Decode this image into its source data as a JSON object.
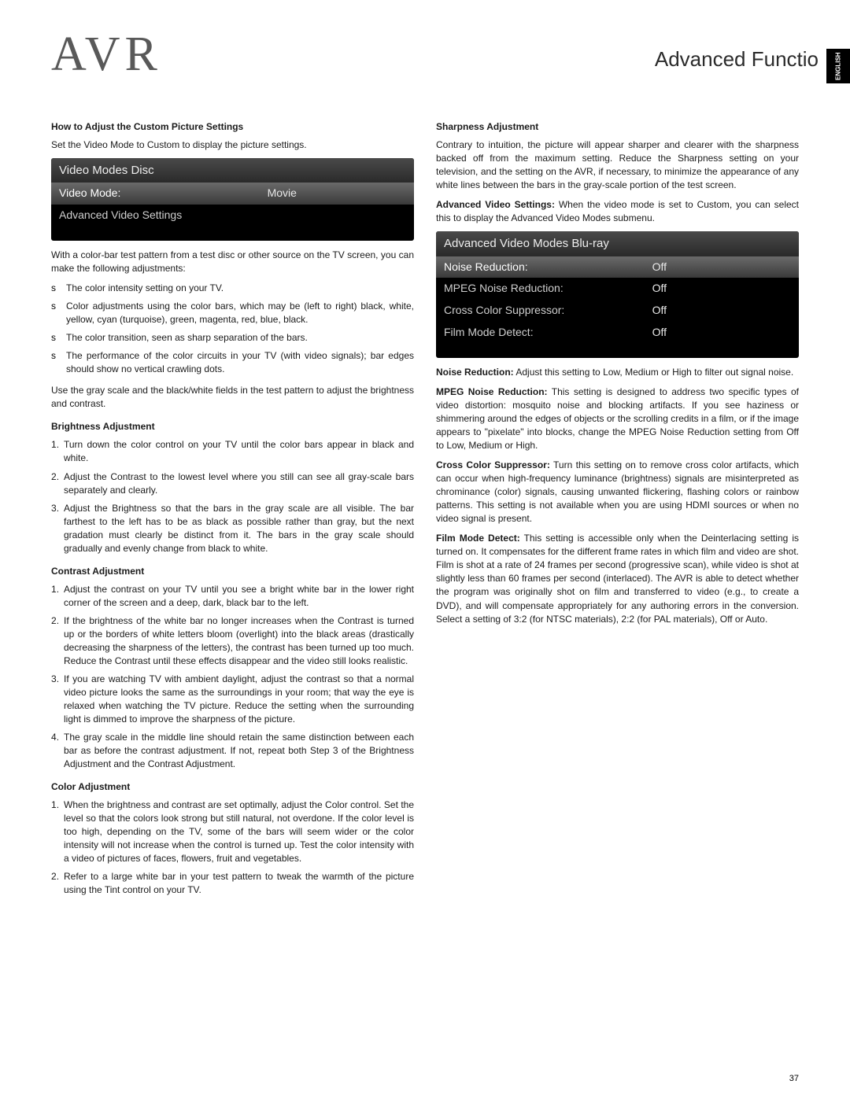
{
  "logo": "AVR",
  "header_right": "Advanced Functio",
  "lang_tab": "ENGLISH",
  "page_number": "37",
  "left": {
    "h1": "How to Adjust the Custom Picture Settings",
    "p1": "Set the Video Mode to Custom to display the picture settings.",
    "menu1": {
      "title": "Video Modes   Disc",
      "rows": [
        {
          "label": "Video Mode:",
          "val": "Movie",
          "sel": true
        },
        {
          "label": "Advanced Video Settings",
          "val": "",
          "sel": false
        }
      ]
    },
    "p2": "With a color-bar test pattern from a test disc or other source on the TV screen, you can make the following adjustments:",
    "bullets": [
      "The color intensity setting on your TV.",
      "Color adjustments using the color bars, which may be (left to right) black, white, yellow, cyan (turquoise), green, magenta, red, blue, black.",
      "The color transition, seen as sharp separation of the bars.",
      "The performance of the color circuits in your TV (with video signals); bar edges should show no vertical crawling dots."
    ],
    "p3": "Use the gray scale and the black/white fields in the test pattern to adjust the brightness and contrast.",
    "h_brightness": "Brightness Adjustment",
    "brightness_steps": [
      "Turn down the color control on your TV until the color bars appear in black and white.",
      "Adjust the Contrast to the lowest level where you still can see all gray-scale bars separately and clearly.",
      "Adjust the Brightness so that the bars in the gray scale are all visible. The bar farthest to the left has to be as black as possible rather than gray, but the next gradation must clearly be distinct from it. The bars in the gray scale should gradually and evenly change from black to white."
    ],
    "h_contrast": "Contrast Adjustment",
    "contrast_steps": [
      "Adjust the contrast on your TV until you see a bright white bar in the lower right corner of the screen and a deep, dark, black bar to the left.",
      "If the brightness of the white bar no longer increases when the Contrast is turned up or the borders of white letters bloom (overlight) into the black areas (drastically decreasing the sharpness of the letters), the contrast has been turned up too much. Reduce the Contrast until these effects disappear and the video still looks realistic.",
      "If you are watching TV with ambient daylight, adjust the contrast so that a normal video picture looks the same as the surroundings in your room; that way the eye is relaxed when watching the TV picture. Reduce the setting when the surrounding light is dimmed to improve the sharpness of the picture.",
      "The gray scale in the middle line should retain the same distinction between each bar as before the contrast adjustment. If not, repeat both Step 3 of the Brightness Adjustment and the Contrast Adjustment."
    ],
    "h_color": "Color Adjustment",
    "color_steps": [
      "When the brightness and contrast are set optimally, adjust the Color control. Set the level so that the colors look strong but still natural, not overdone. If the color level is too high, depending on the TV, some of the bars will seem wider or the color intensity will not increase when the control is turned up. Test the color intensity with a video of pictures of faces, flowers, fruit and vegetables.",
      "Refer to a large white bar in your test pattern to tweak the warmth of the picture using the Tint control on your TV."
    ]
  },
  "right": {
    "h_sharp": "Sharpness Adjustment",
    "p_sharp": "Contrary to intuition, the picture will appear sharper and clearer with the sharpness backed off from the maximum setting. Reduce the Sharpness setting on your television, and the setting on the AVR, if necessary, to minimize the appearance of any white lines between the bars in the gray-scale portion of the test screen.",
    "avs_label": "Advanced Video Settings:",
    "avs_text": " When the video mode is set to Custom, you can select this to display the Advanced Video Modes submenu.",
    "menu2": {
      "title": "Advanced Video Modes   Blu-ray",
      "rows": [
        {
          "label": "Noise Reduction:",
          "val": "Off",
          "sel": true
        },
        {
          "label": "MPEG Noise Reduction:",
          "val": "Off",
          "sel": false
        },
        {
          "label": "Cross Color Suppressor:",
          "val": "Off",
          "sel": false
        },
        {
          "label": "Film Mode Detect:",
          "val": "Off",
          "sel": false
        }
      ]
    },
    "nr_label": "Noise Reduction:",
    "nr_text": " Adjust this setting to Low, Medium or High to filter out signal noise.",
    "mpeg_label": "MPEG Noise Reduction:",
    "mpeg_text": " This setting is designed to address two specific types of video distortion: mosquito noise and blocking artifacts. If you see haziness or shimmering around the edges of objects or the scrolling credits in a film, or if the image appears to \"pixelate\" into blocks, change the MPEG Noise Reduction setting from Off to Low, Medium or High.",
    "ccs_label": "Cross Color Suppressor:",
    "ccs_text": " Turn this setting on to remove cross color artifacts, which can occur when high-frequency luminance (brightness) signals are misinterpreted as chrominance (color) signals, causing unwanted flickering, flashing colors or rainbow patterns. This setting is not available when you are using HDMI sources or when no video signal is present.",
    "fmd_label": "Film Mode Detect:",
    "fmd_text": " This setting is accessible only when the Deinterlacing setting is turned on. It compensates for the different frame rates in which film and video are shot. Film is shot at a rate of 24 frames per second (progressive scan), while video is shot at slightly less than 60 frames per second (interlaced). The AVR is able to detect whether the program was originally shot on film and transferred to video (e.g., to create a DVD), and will compensate appropriately for any authoring errors in the conversion. Select a setting of 3:2 (for NTSC materials), 2:2 (for PAL materials), Off or Auto."
  }
}
